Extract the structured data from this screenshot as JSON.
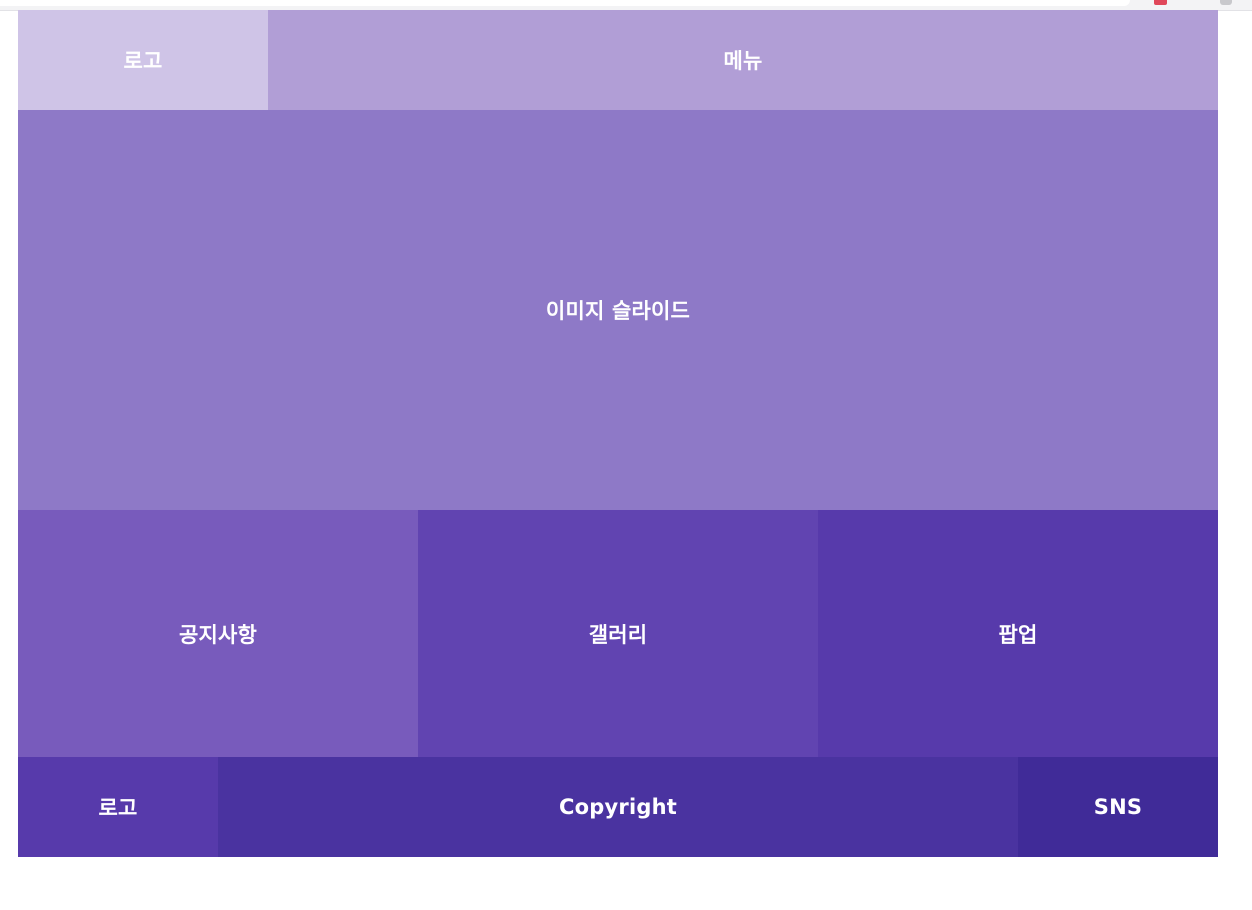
{
  "colors": {
    "header_logo_bg": "#cfc4e7",
    "menu_bg": "#b19ed6",
    "slider_bg": "#8e79c7",
    "notice_bg": "#785bbc",
    "gallery_bg": "#6144b1",
    "popup_bg": "#573aab",
    "footer_logo_bg": "#573aab",
    "copyright_bg": "#4a33a0",
    "sns_bg": "#402b98"
  },
  "header": {
    "logo_label": "로고",
    "menu_label": "메뉴"
  },
  "slider": {
    "label": "이미지 슬라이드"
  },
  "content": {
    "notice_label": "공지사항",
    "gallery_label": "갤러리",
    "popup_label": "팝업"
  },
  "footer": {
    "logo_label": "로고",
    "copyright_label": "Copyright",
    "sns_label": "SNS"
  }
}
